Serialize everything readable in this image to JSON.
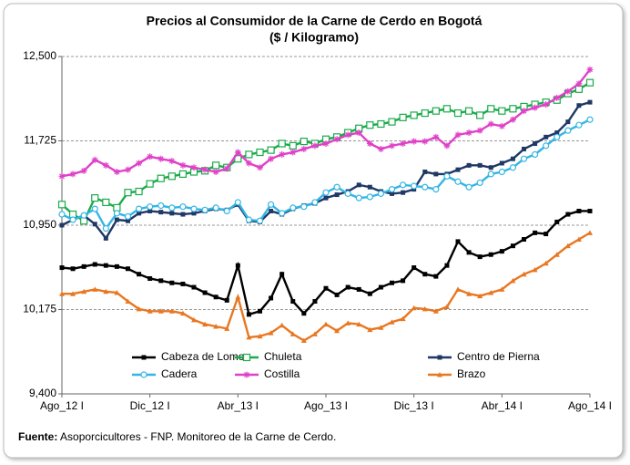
{
  "chart_data": {
    "type": "line",
    "title": "Precios al Consumidor de la Carne de Cerdo en Bogotá",
    "subtitle": "($ / Kilogramo)",
    "categories": [
      "Ago_12 I",
      null,
      null,
      null,
      null,
      null,
      null,
      null,
      "Dic_12 I",
      null,
      null,
      null,
      null,
      null,
      null,
      null,
      "Abr_13 I",
      null,
      null,
      null,
      null,
      null,
      null,
      null,
      "Ago_13 I",
      null,
      null,
      null,
      null,
      null,
      null,
      null,
      "Dic_13 I",
      null,
      null,
      null,
      null,
      null,
      null,
      null,
      "Abr_14 I",
      null,
      null,
      null,
      null,
      null,
      null,
      null,
      "Ago_14 I"
    ],
    "ylim": [
      9400,
      12500
    ],
    "yticks": [
      {
        "value": 9400,
        "label": "9,400"
      },
      {
        "value": 10175,
        "label": "10,175"
      },
      {
        "value": 10950,
        "label": "10,950"
      },
      {
        "value": 11725,
        "label": "11,725"
      },
      {
        "value": 12500,
        "label": "12,500"
      }
    ],
    "grid": true,
    "legend": "bottom",
    "series": [
      {
        "name": "Cabeza de Lomo",
        "color": "#000000",
        "marker": "square",
        "values": [
          10560,
          10550,
          10570,
          10590,
          10580,
          10570,
          10550,
          10500,
          10460,
          10440,
          10420,
          10410,
          10380,
          10330,
          10290,
          10260,
          10580,
          10130,
          10160,
          10280,
          10500,
          10250,
          10140,
          10250,
          10370,
          10310,
          10380,
          10360,
          10320,
          10380,
          10420,
          10440,
          10560,
          10500,
          10480,
          10580,
          10800,
          10700,
          10660,
          10680,
          10710,
          10760,
          10820,
          10880,
          10870,
          10980,
          11050,
          11080,
          11080
        ]
      },
      {
        "name": "Chuleta",
        "color": "#1aab4a",
        "marker": "open-square",
        "values": [
          11140,
          11050,
          10990,
          11200,
          11160,
          11110,
          11250,
          11260,
          11330,
          11380,
          11400,
          11420,
          11440,
          11450,
          11500,
          11480,
          11560,
          11600,
          11620,
          11640,
          11700,
          11680,
          11720,
          11700,
          11740,
          11760,
          11800,
          11840,
          11870,
          11880,
          11900,
          11940,
          11960,
          11980,
          12000,
          12020,
          11980,
          12000,
          11960,
          12020,
          12000,
          12020,
          12040,
          12060,
          12080,
          12100,
          12160,
          12200,
          12260
        ]
      },
      {
        "name": "Centro de Pierna",
        "color": "#1f3864",
        "marker": "square",
        "values": [
          10950,
          11000,
          11040,
          10960,
          10830,
          11000,
          10990,
          11060,
          11080,
          11070,
          11060,
          11050,
          11060,
          11080,
          11100,
          11090,
          11140,
          10990,
          10980,
          11080,
          11050,
          11100,
          11130,
          11150,
          11200,
          11230,
          11260,
          11320,
          11300,
          11260,
          11240,
          11250,
          11280,
          11440,
          11420,
          11420,
          11460,
          11500,
          11500,
          11480,
          11520,
          11560,
          11650,
          11700,
          11760,
          11800,
          11900,
          12050,
          12080
        ]
      },
      {
        "name": "Cadera",
        "color": "#33b5e5",
        "marker": "circle",
        "values": [
          11050,
          11000,
          11040,
          11100,
          10920,
          11060,
          11030,
          11100,
          11120,
          11130,
          11110,
          11120,
          11100,
          11090,
          11110,
          11080,
          11160,
          11000,
          10990,
          11140,
          11060,
          11110,
          11120,
          11160,
          11250,
          11300,
          11240,
          11200,
          11210,
          11240,
          11280,
          11320,
          11310,
          11300,
          11280,
          11400,
          11350,
          11300,
          11340,
          11420,
          11440,
          11480,
          11560,
          11600,
          11680,
          11760,
          11820,
          11870,
          11920
        ]
      },
      {
        "name": "Costilla",
        "color": "#e040c8",
        "marker": "asterisk",
        "values": [
          11400,
          11420,
          11450,
          11550,
          11500,
          11440,
          11460,
          11520,
          11580,
          11560,
          11540,
          11500,
          11480,
          11460,
          11440,
          11470,
          11620,
          11520,
          11480,
          11560,
          11600,
          11620,
          11650,
          11680,
          11700,
          11740,
          11780,
          11800,
          11700,
          11650,
          11680,
          11700,
          11720,
          11720,
          11760,
          11680,
          11780,
          11800,
          11820,
          11880,
          11860,
          11920,
          12000,
          12030,
          12060,
          12120,
          12180,
          12250,
          12380
        ]
      },
      {
        "name": "Brazo",
        "color": "#e87722",
        "marker": "triangle",
        "values": [
          10320,
          10320,
          10340,
          10360,
          10340,
          10330,
          10250,
          10180,
          10160,
          10160,
          10160,
          10140,
          10080,
          10040,
          10020,
          10000,
          10290,
          9920,
          9930,
          9960,
          10030,
          9950,
          9890,
          9950,
          10040,
          9980,
          10050,
          10040,
          9990,
          10010,
          10060,
          10090,
          10190,
          10180,
          10160,
          10200,
          10360,
          10320,
          10300,
          10330,
          10360,
          10440,
          10500,
          10540,
          10600,
          10680,
          10760,
          10820,
          10880
        ]
      }
    ],
    "source_label": "Fuente:",
    "source": "Asoporcicultores - FNP. Monitoreo de la Carne de Cerdo."
  }
}
